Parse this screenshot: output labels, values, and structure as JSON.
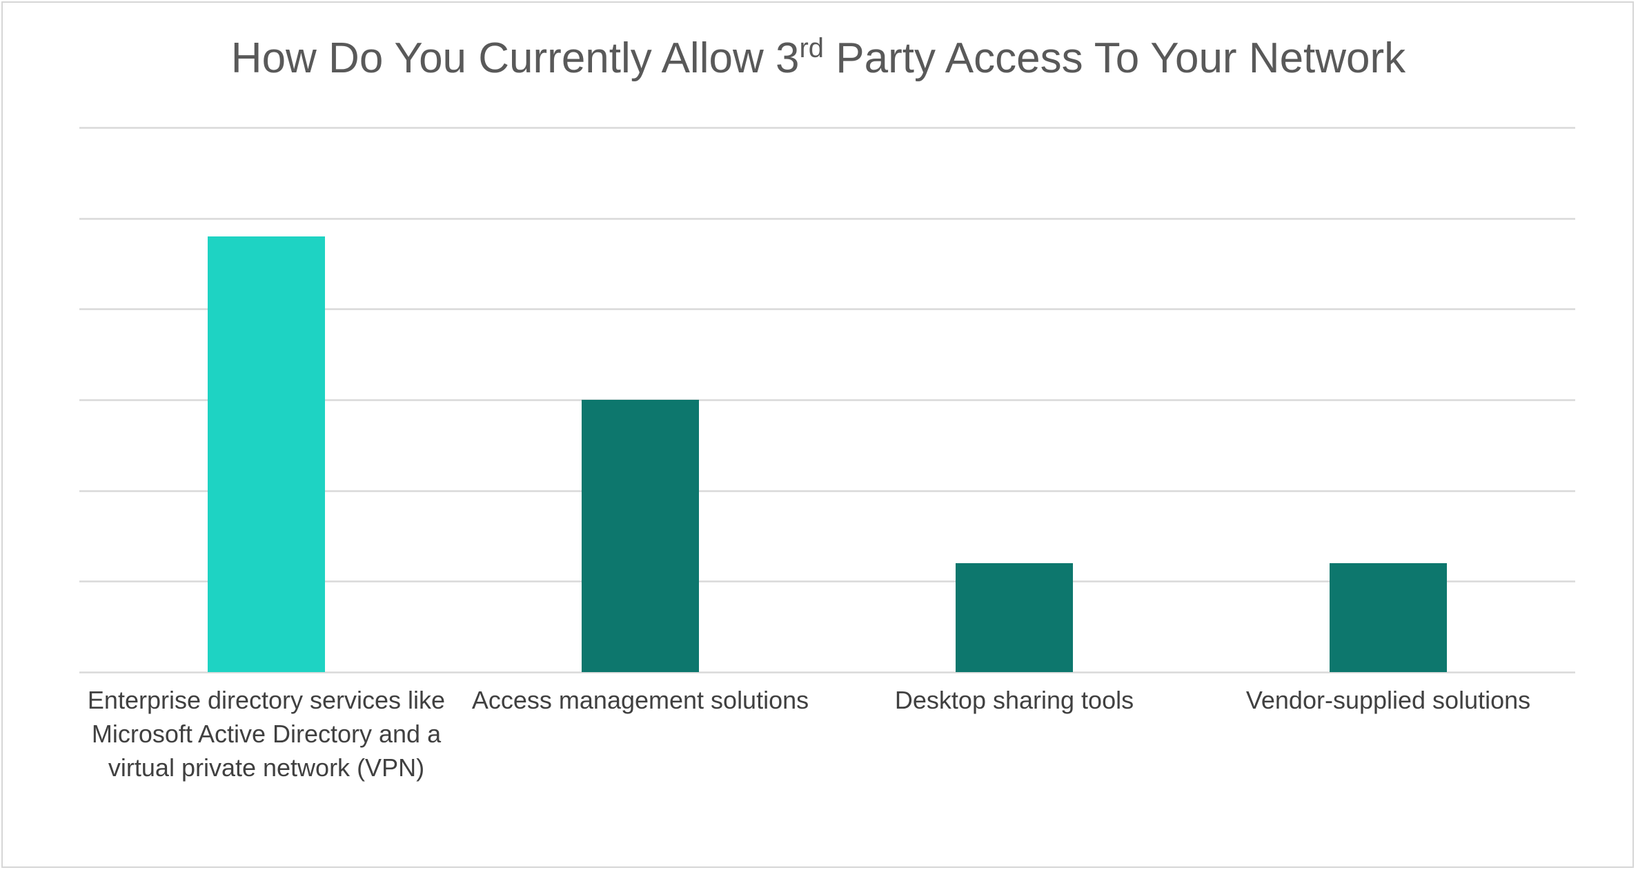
{
  "chart_data": {
    "type": "bar",
    "title": {
      "before": "How Do You Currently Allow 3",
      "superscript": "rd",
      "after": " Party Access To Your Network"
    },
    "xlabel": "",
    "ylabel": "",
    "categories": [
      [
        "Enterprise directory services like",
        "Microsoft Active Directory and a",
        "virtual private network (VPN)"
      ],
      [
        "Access management solutions"
      ],
      [
        "Desktop sharing tools"
      ],
      [
        "Vendor-supplied solutions"
      ]
    ],
    "values": [
      4.8,
      3.0,
      1.2,
      1.2
    ],
    "ylim": [
      0,
      6
    ],
    "yticks": [
      0,
      1,
      2,
      3,
      4,
      5,
      6
    ],
    "ytick_labels_visible": false,
    "grid": true,
    "legend": "none",
    "bar_colors": [
      "#1ed3c3",
      "#0d776d",
      "#0d776d",
      "#0d776d"
    ],
    "gridline_color": "#d9d9d9"
  }
}
